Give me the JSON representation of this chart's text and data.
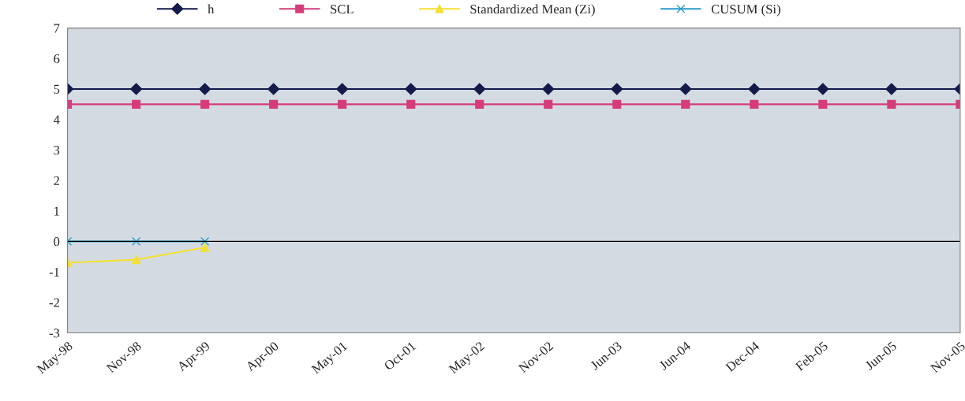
{
  "chart_data": {
    "type": "line",
    "categories": [
      "May-98",
      "Nov-98",
      "Apr-99",
      "Apr-00",
      "May-01",
      "Oct-01",
      "May-02",
      "Nov-02",
      "Jun-03",
      "Jun-04",
      "Dec-04",
      "Feb-05",
      "Jun-05",
      "Nov-05"
    ],
    "series": [
      {
        "name": "h",
        "color": "#141a4a",
        "marker": "diamond",
        "values": [
          5,
          5,
          5,
          5,
          5,
          5,
          5,
          5,
          5,
          5,
          5,
          5,
          5,
          5
        ]
      },
      {
        "name": "SCL",
        "color": "#d63c7a",
        "marker": "square",
        "values": [
          4.5,
          4.5,
          4.5,
          4.5,
          4.5,
          4.5,
          4.5,
          4.5,
          4.5,
          4.5,
          4.5,
          4.5,
          4.5,
          4.5
        ]
      },
      {
        "name": "Standardized Mean (Zi)",
        "color": "#f2e034",
        "marker": "triangle",
        "values": [
          -0.7,
          -0.6,
          -0.2,
          null,
          null,
          null,
          null,
          null,
          null,
          null,
          null,
          null,
          null,
          null
        ]
      },
      {
        "name": "CUSUM (Si)",
        "color": "#2a9ccc",
        "marker": "cross",
        "values": [
          0,
          0,
          0,
          null,
          null,
          null,
          null,
          null,
          null,
          null,
          null,
          null,
          null,
          null
        ]
      }
    ],
    "ylim": [
      -3,
      7
    ],
    "yticks": [
      -3,
      -2,
      -1,
      0,
      1,
      2,
      3,
      4,
      5,
      6,
      7
    ],
    "ref_lines": [
      {
        "axis": "y",
        "value": 0,
        "color": "#000000"
      }
    ],
    "grid": false,
    "legend": "top"
  }
}
